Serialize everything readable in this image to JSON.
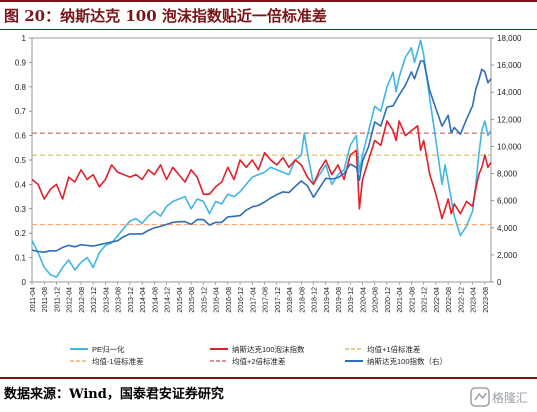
{
  "title": "图 20：纳斯达克 100 泡沫指数贴近一倍标准差",
  "source": "数据来源：Wind，国泰君安证券研究",
  "watermark": "格隆汇",
  "colors": {
    "pe": "#41b6e6",
    "bubble": "#e0212b",
    "ndx": "#2e6eb5",
    "mean": "#ff9966",
    "sd1": "#d4b14a",
    "sd2": "#c0504d",
    "title": "#7a1418"
  },
  "chart_data": {
    "type": "line",
    "title": "图 20：纳斯达克 100 泡沫指数贴近一倍标准差",
    "x_tick_labels": [
      "2011-04",
      "2011-08",
      "2011-12",
      "2012-04",
      "2012-08",
      "2012-12",
      "2013-04",
      "2013-08",
      "2013-12",
      "2014-04",
      "2014-08",
      "2014-12",
      "2015-04",
      "2015-08",
      "2015-12",
      "2016-04",
      "2016-08",
      "2016-12",
      "2017-04",
      "2017-08",
      "2017-12",
      "2018-04",
      "2018-08",
      "2018-12",
      "2019-04",
      "2019-08",
      "2019-12",
      "2020-04",
      "2020-08",
      "2020-12",
      "2021-04",
      "2021-08",
      "2021-12",
      "2022-04",
      "2022-08",
      "2022-12",
      "2023-04",
      "2023-08"
    ],
    "x_range": [
      "2011-04",
      "2023-10"
    ],
    "y_left": {
      "range": [
        0,
        1
      ],
      "tick_labels": [
        "0",
        "0.1",
        "0.2",
        "0.3",
        "0.4",
        "0.5",
        "0.6",
        "0.7",
        "0.8",
        "0.9",
        "1"
      ]
    },
    "y_right": {
      "range": [
        0,
        18000
      ],
      "tick_labels": [
        "0",
        "2,000",
        "4,000",
        "6,000",
        "8,000",
        "10,000",
        "12,000",
        "14,000",
        "16,000",
        "18,000"
      ]
    },
    "legend": [
      {
        "key": "pe",
        "label": "PE归一化",
        "style": "solid"
      },
      {
        "key": "bubble",
        "label": "纳斯达克100泡沫指数",
        "style": "solid"
      },
      {
        "key": "sd1",
        "label": "均值+1倍标准差",
        "style": "dashed"
      },
      {
        "key": "mean",
        "label": "均值-1倍标准差",
        "style": "dashed"
      },
      {
        "key": "sd2",
        "label": "均值+2倍标准差",
        "style": "dashed"
      },
      {
        "key": "ndx",
        "label": "纳斯达克100指数（右）",
        "style": "solid"
      }
    ],
    "reference_lines": [
      {
        "key": "sd2",
        "value": 0.61
      },
      {
        "key": "sd1",
        "value": 0.52
      },
      {
        "key": "mean",
        "value": 0.235
      }
    ],
    "series": [
      {
        "key": "pe",
        "axis": "left",
        "points": [
          [
            "2011-04",
            0.17
          ],
          [
            "2011-06",
            0.12
          ],
          [
            "2011-08",
            0.06
          ],
          [
            "2011-10",
            0.03
          ],
          [
            "2011-12",
            0.02
          ],
          [
            "2012-02",
            0.06
          ],
          [
            "2012-04",
            0.09
          ],
          [
            "2012-06",
            0.05
          ],
          [
            "2012-08",
            0.08
          ],
          [
            "2012-10",
            0.1
          ],
          [
            "2012-12",
            0.06
          ],
          [
            "2013-02",
            0.12
          ],
          [
            "2013-04",
            0.15
          ],
          [
            "2013-06",
            0.16
          ],
          [
            "2013-08",
            0.19
          ],
          [
            "2013-10",
            0.22
          ],
          [
            "2013-12",
            0.25
          ],
          [
            "2014-02",
            0.26
          ],
          [
            "2014-04",
            0.24
          ],
          [
            "2014-06",
            0.27
          ],
          [
            "2014-08",
            0.29
          ],
          [
            "2014-10",
            0.27
          ],
          [
            "2014-12",
            0.31
          ],
          [
            "2015-02",
            0.33
          ],
          [
            "2015-04",
            0.34
          ],
          [
            "2015-06",
            0.35
          ],
          [
            "2015-08",
            0.3
          ],
          [
            "2015-10",
            0.34
          ],
          [
            "2015-12",
            0.33
          ],
          [
            "2016-02",
            0.28
          ],
          [
            "2016-04",
            0.33
          ],
          [
            "2016-06",
            0.32
          ],
          [
            "2016-08",
            0.36
          ],
          [
            "2016-10",
            0.35
          ],
          [
            "2016-12",
            0.37
          ],
          [
            "2017-02",
            0.4
          ],
          [
            "2017-04",
            0.43
          ],
          [
            "2017-06",
            0.44
          ],
          [
            "2017-08",
            0.45
          ],
          [
            "2017-10",
            0.47
          ],
          [
            "2017-12",
            0.46
          ],
          [
            "2018-02",
            0.45
          ],
          [
            "2018-04",
            0.44
          ],
          [
            "2018-06",
            0.5
          ],
          [
            "2018-08",
            0.52
          ],
          [
            "2018-09",
            0.61
          ],
          [
            "2018-10",
            0.53
          ],
          [
            "2018-12",
            0.4
          ],
          [
            "2019-02",
            0.44
          ],
          [
            "2019-04",
            0.48
          ],
          [
            "2019-06",
            0.4
          ],
          [
            "2019-08",
            0.44
          ],
          [
            "2019-10",
            0.46
          ],
          [
            "2019-12",
            0.56
          ],
          [
            "2020-02",
            0.6
          ],
          [
            "2020-03",
            0.45
          ],
          [
            "2020-04",
            0.52
          ],
          [
            "2020-06",
            0.62
          ],
          [
            "2020-08",
            0.72
          ],
          [
            "2020-10",
            0.7
          ],
          [
            "2020-12",
            0.8
          ],
          [
            "2021-02",
            0.86
          ],
          [
            "2021-03",
            0.78
          ],
          [
            "2021-04",
            0.84
          ],
          [
            "2021-06",
            0.92
          ],
          [
            "2021-08",
            0.96
          ],
          [
            "2021-09",
            0.9
          ],
          [
            "2021-11",
            0.99
          ],
          [
            "2021-12",
            0.93
          ],
          [
            "2022-02",
            0.75
          ],
          [
            "2022-04",
            0.58
          ],
          [
            "2022-05",
            0.49
          ],
          [
            "2022-06",
            0.4
          ],
          [
            "2022-07",
            0.48
          ],
          [
            "2022-09",
            0.34
          ],
          [
            "2022-10",
            0.27
          ],
          [
            "2022-12",
            0.19
          ],
          [
            "2023-02",
            0.23
          ],
          [
            "2023-04",
            0.29
          ],
          [
            "2023-05",
            0.4
          ],
          [
            "2023-06",
            0.52
          ],
          [
            "2023-07",
            0.62
          ],
          [
            "2023-08",
            0.66
          ],
          [
            "2023-09",
            0.6
          ],
          [
            "2023-10",
            0.62
          ]
        ]
      },
      {
        "key": "bubble",
        "axis": "left",
        "points": [
          [
            "2011-04",
            0.42
          ],
          [
            "2011-06",
            0.4
          ],
          [
            "2011-08",
            0.34
          ],
          [
            "2011-10",
            0.38
          ],
          [
            "2011-12",
            0.4
          ],
          [
            "2012-02",
            0.34
          ],
          [
            "2012-04",
            0.43
          ],
          [
            "2012-06",
            0.41
          ],
          [
            "2012-08",
            0.46
          ],
          [
            "2012-10",
            0.42
          ],
          [
            "2012-12",
            0.44
          ],
          [
            "2013-02",
            0.39
          ],
          [
            "2013-04",
            0.42
          ],
          [
            "2013-06",
            0.48
          ],
          [
            "2013-08",
            0.45
          ],
          [
            "2013-10",
            0.44
          ],
          [
            "2013-12",
            0.43
          ],
          [
            "2014-02",
            0.44
          ],
          [
            "2014-04",
            0.42
          ],
          [
            "2014-06",
            0.46
          ],
          [
            "2014-08",
            0.44
          ],
          [
            "2014-10",
            0.48
          ],
          [
            "2014-12",
            0.42
          ],
          [
            "2015-02",
            0.47
          ],
          [
            "2015-04",
            0.44
          ],
          [
            "2015-06",
            0.41
          ],
          [
            "2015-08",
            0.46
          ],
          [
            "2015-10",
            0.43
          ],
          [
            "2015-12",
            0.36
          ],
          [
            "2016-02",
            0.36
          ],
          [
            "2016-04",
            0.39
          ],
          [
            "2016-06",
            0.41
          ],
          [
            "2016-08",
            0.47
          ],
          [
            "2016-10",
            0.42
          ],
          [
            "2016-12",
            0.5
          ],
          [
            "2017-02",
            0.47
          ],
          [
            "2017-04",
            0.5
          ],
          [
            "2017-06",
            0.46
          ],
          [
            "2017-08",
            0.53
          ],
          [
            "2017-10",
            0.5
          ],
          [
            "2017-12",
            0.48
          ],
          [
            "2018-02",
            0.51
          ],
          [
            "2018-04",
            0.47
          ],
          [
            "2018-06",
            0.5
          ],
          [
            "2018-08",
            0.48
          ],
          [
            "2018-10",
            0.43
          ],
          [
            "2018-12",
            0.4
          ],
          [
            "2019-02",
            0.46
          ],
          [
            "2019-04",
            0.5
          ],
          [
            "2019-06",
            0.44
          ],
          [
            "2019-08",
            0.48
          ],
          [
            "2019-10",
            0.42
          ],
          [
            "2019-12",
            0.52
          ],
          [
            "2020-02",
            0.54
          ],
          [
            "2020-03",
            0.3
          ],
          [
            "2020-04",
            0.42
          ],
          [
            "2020-06",
            0.5
          ],
          [
            "2020-08",
            0.58
          ],
          [
            "2020-10",
            0.56
          ],
          [
            "2020-12",
            0.66
          ],
          [
            "2021-02",
            0.62
          ],
          [
            "2021-03",
            0.58
          ],
          [
            "2021-04",
            0.66
          ],
          [
            "2021-06",
            0.6
          ],
          [
            "2021-08",
            0.62
          ],
          [
            "2021-10",
            0.64
          ],
          [
            "2021-11",
            0.54
          ],
          [
            "2021-12",
            0.58
          ],
          [
            "2022-02",
            0.44
          ],
          [
            "2022-04",
            0.36
          ],
          [
            "2022-06",
            0.26
          ],
          [
            "2022-08",
            0.34
          ],
          [
            "2022-09",
            0.28
          ],
          [
            "2022-10",
            0.32
          ],
          [
            "2022-12",
            0.28
          ],
          [
            "2023-02",
            0.33
          ],
          [
            "2023-04",
            0.31
          ],
          [
            "2023-05",
            0.38
          ],
          [
            "2023-06",
            0.44
          ],
          [
            "2023-07",
            0.47
          ],
          [
            "2023-08",
            0.52
          ],
          [
            "2023-09",
            0.47
          ],
          [
            "2023-10",
            0.49
          ]
        ]
      },
      {
        "key": "ndx",
        "axis": "right",
        "points": [
          [
            "2011-04",
            2350
          ],
          [
            "2011-06",
            2250
          ],
          [
            "2011-08",
            2200
          ],
          [
            "2011-10",
            2300
          ],
          [
            "2011-12",
            2300
          ],
          [
            "2012-02",
            2550
          ],
          [
            "2012-04",
            2700
          ],
          [
            "2012-06",
            2600
          ],
          [
            "2012-08",
            2750
          ],
          [
            "2012-10",
            2700
          ],
          [
            "2012-12",
            2650
          ],
          [
            "2013-02",
            2750
          ],
          [
            "2013-04",
            2850
          ],
          [
            "2013-06",
            2950
          ],
          [
            "2013-08",
            3050
          ],
          [
            "2013-10",
            3350
          ],
          [
            "2013-12",
            3550
          ],
          [
            "2014-02",
            3550
          ],
          [
            "2014-04",
            3550
          ],
          [
            "2014-06",
            3800
          ],
          [
            "2014-08",
            4000
          ],
          [
            "2014-10",
            4100
          ],
          [
            "2014-12",
            4250
          ],
          [
            "2015-02",
            4400
          ],
          [
            "2015-04",
            4450
          ],
          [
            "2015-06",
            4450
          ],
          [
            "2015-08",
            4250
          ],
          [
            "2015-10",
            4600
          ],
          [
            "2015-12",
            4600
          ],
          [
            "2016-02",
            4200
          ],
          [
            "2016-04",
            4400
          ],
          [
            "2016-06",
            4400
          ],
          [
            "2016-08",
            4800
          ],
          [
            "2016-10",
            4850
          ],
          [
            "2016-12",
            4900
          ],
          [
            "2017-02",
            5300
          ],
          [
            "2017-04",
            5550
          ],
          [
            "2017-06",
            5650
          ],
          [
            "2017-08",
            5900
          ],
          [
            "2017-10",
            6200
          ],
          [
            "2017-12",
            6450
          ],
          [
            "2018-02",
            6650
          ],
          [
            "2018-04",
            6600
          ],
          [
            "2018-06",
            7050
          ],
          [
            "2018-08",
            7450
          ],
          [
            "2018-10",
            7100
          ],
          [
            "2018-12",
            6250
          ],
          [
            "2019-02",
            6950
          ],
          [
            "2019-04",
            7650
          ],
          [
            "2019-06",
            7600
          ],
          [
            "2019-08",
            7700
          ],
          [
            "2019-10",
            8000
          ],
          [
            "2019-12",
            8700
          ],
          [
            "2020-02",
            8450
          ],
          [
            "2020-03",
            7500
          ],
          [
            "2020-04",
            8900
          ],
          [
            "2020-06",
            10000
          ],
          [
            "2020-08",
            11800
          ],
          [
            "2020-10",
            11500
          ],
          [
            "2020-12",
            12900
          ],
          [
            "2021-02",
            13000
          ],
          [
            "2021-04",
            13800
          ],
          [
            "2021-06",
            14500
          ],
          [
            "2021-08",
            15500
          ],
          [
            "2021-09",
            15000
          ],
          [
            "2021-11",
            16300
          ],
          [
            "2021-12",
            16300
          ],
          [
            "2022-02",
            14100
          ],
          [
            "2022-04",
            12800
          ],
          [
            "2022-06",
            11500
          ],
          [
            "2022-08",
            12300
          ],
          [
            "2022-09",
            11000
          ],
          [
            "2022-10",
            11400
          ],
          [
            "2022-12",
            10900
          ],
          [
            "2023-02",
            12000
          ],
          [
            "2023-04",
            13000
          ],
          [
            "2023-05",
            14200
          ],
          [
            "2023-06",
            14900
          ],
          [
            "2023-07",
            15700
          ],
          [
            "2023-08",
            15500
          ],
          [
            "2023-09",
            14700
          ],
          [
            "2023-10",
            15000
          ]
        ]
      }
    ]
  }
}
